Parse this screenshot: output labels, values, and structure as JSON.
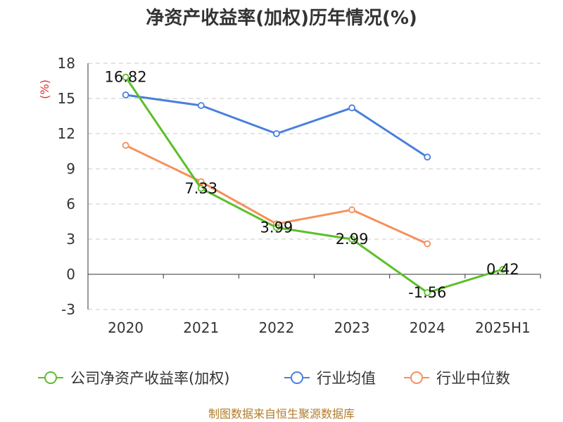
{
  "chart_data": {
    "type": "line",
    "title": "净资产收益率(加权)历年情况(%)",
    "ylabel": "(%)",
    "categories": [
      "2020",
      "2021",
      "2022",
      "2023",
      "2024",
      "2025H1"
    ],
    "ylim": [
      -3,
      18
    ],
    "yticks": [
      -3,
      0,
      3,
      6,
      9,
      12,
      15,
      18
    ],
    "grid": true,
    "legend_position": "bottom",
    "series": [
      {
        "name": "公司净资产收益率(加权)",
        "color": "#5cbf2a",
        "values": [
          16.82,
          7.33,
          3.99,
          2.99,
          -1.56,
          0.42
        ],
        "labels": [
          "16.82",
          "7.33",
          "3.99",
          "2.99",
          "-1.56",
          "0.42"
        ]
      },
      {
        "name": "行业均值",
        "color": "#4a7fdc",
        "values": [
          15.3,
          14.4,
          12.0,
          14.2,
          10.0,
          null
        ]
      },
      {
        "name": "行业中位数",
        "color": "#f5905b",
        "values": [
          11.0,
          7.9,
          4.3,
          5.5,
          2.6,
          null
        ]
      }
    ]
  },
  "source_text": "制图数据来自恒生聚源数据库"
}
